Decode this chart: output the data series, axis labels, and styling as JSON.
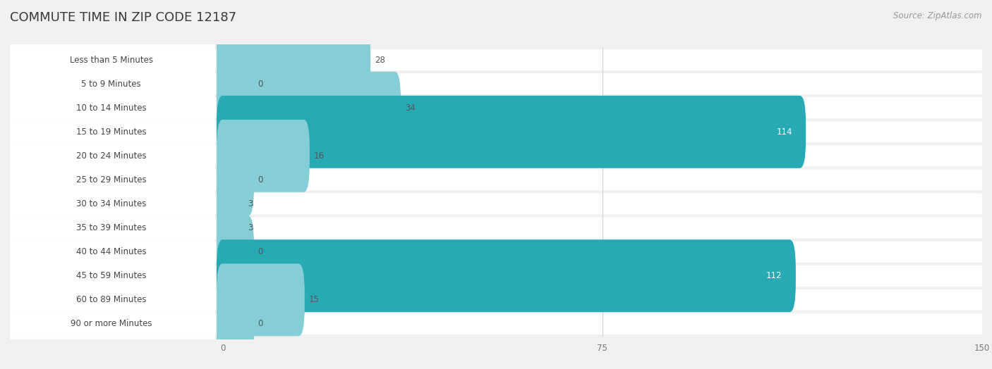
{
  "title": "COMMUTE TIME IN ZIP CODE 12187",
  "source": "Source: ZipAtlas.com",
  "categories": [
    "Less than 5 Minutes",
    "5 to 9 Minutes",
    "10 to 14 Minutes",
    "15 to 19 Minutes",
    "20 to 24 Minutes",
    "25 to 29 Minutes",
    "30 to 34 Minutes",
    "35 to 39 Minutes",
    "40 to 44 Minutes",
    "45 to 59 Minutes",
    "60 to 89 Minutes",
    "90 or more Minutes"
  ],
  "values": [
    28,
    0,
    34,
    114,
    16,
    0,
    3,
    3,
    0,
    112,
    15,
    0
  ],
  "xlim_left": -42,
  "xlim_right": 150,
  "xticks": [
    0,
    75,
    150
  ],
  "bar_color_high": "#28aab5",
  "bar_color_low": "#85ced6",
  "highlight_threshold": 100,
  "background_color": "#f0f0f0",
  "row_bg_color": "#ffffff",
  "row_sep_color": "#d8d8d8",
  "label_color": "#444444",
  "title_color": "#3a3a3a",
  "source_color": "#999999",
  "value_color_inside": "#ffffff",
  "value_color_outside": "#555555",
  "title_fontsize": 13,
  "label_fontsize": 8.5,
  "value_fontsize": 8.5,
  "source_fontsize": 8.5,
  "zero_stub_value": 5
}
